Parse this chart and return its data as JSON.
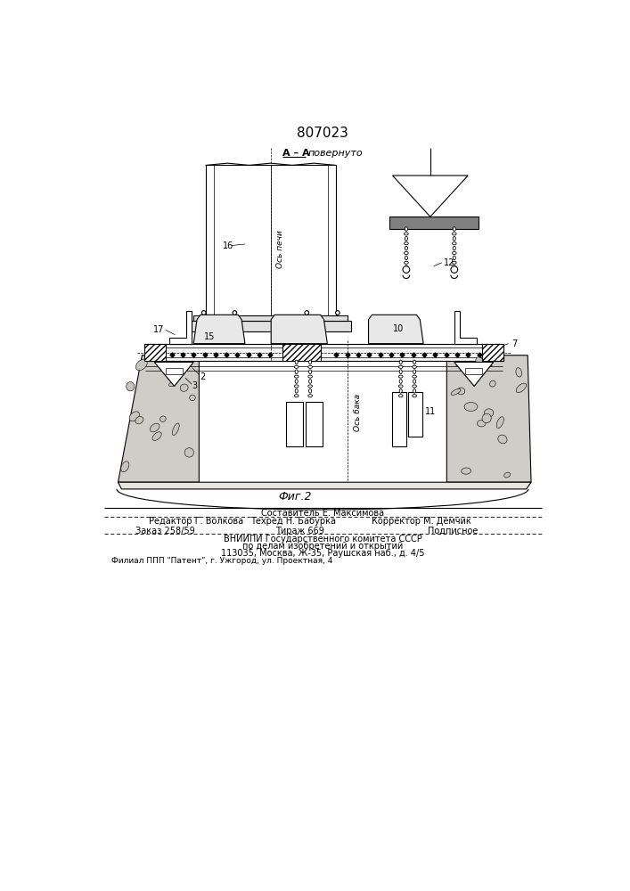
{
  "patent_number": "807023",
  "fig_label": "Фиг.2",
  "section_label_aa": "А – А",
  "section_label_pov": "повернуто",
  "background_color": "#ffffff",
  "line_color": "#000000",
  "editor_line": "Редактор Г. Волкова",
  "sostavitel_line": "Составитель Е. Максимова",
  "tech_line": "Техред Н. Бабурка",
  "corrector_line": "Корректор М. Демчик",
  "order_line": "Заказ 258/59",
  "tirazh_line": "Тираж 669",
  "podpisnoe_line": "Подписное",
  "vniiipi_line": "ВНИИПИ Государственного комитета СССР",
  "po_delam_line": "по делам изобретений и открытий",
  "address_line": "113035, Москва, Ж-35, Раушская наб., д. 4/5",
  "filial_line": "Филиал ППП \"Патент\", г. Ужгород, ул. Проектная, 4",
  "ось_печи": "Ось печи",
  "ось_бака": "Ось бака"
}
